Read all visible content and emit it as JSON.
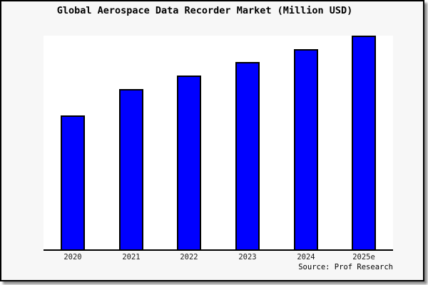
{
  "frame": {
    "background": "#f7f7f7",
    "border_color": "#000000",
    "shadow_color": "#7a7a7a"
  },
  "chart_data": {
    "type": "bar",
    "title": "Global Aerospace Data Recorder Market (Million USD)",
    "categories": [
      "2020",
      "2021",
      "2022",
      "2023",
      "2024",
      "2025e"
    ],
    "values": [
      62.7,
      75.0,
      81.3,
      87.7,
      93.7,
      100.0
    ],
    "values_note": "relative scale; no y-axis tick labels are shown in the chart",
    "ylim": [
      0,
      100
    ],
    "xlabel": "",
    "ylabel": "",
    "grid": false,
    "legend": false,
    "bar_color": "#0000ff",
    "bar_border_color": "#000000",
    "plot_background": "#ffffff",
    "axis_color": "#000000",
    "source": "Source: Prof Research"
  }
}
